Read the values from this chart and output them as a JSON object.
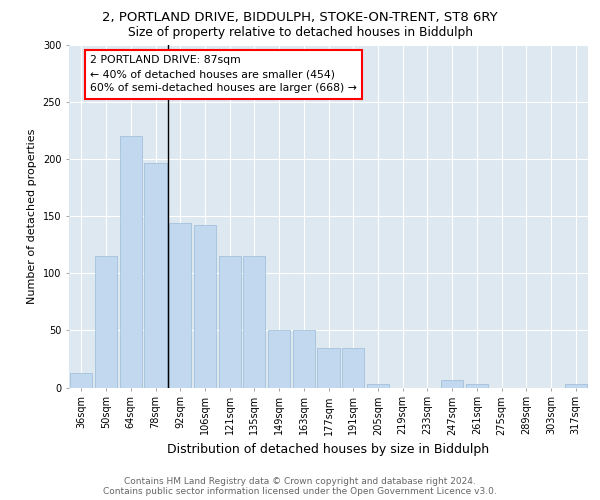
{
  "title_line1": "2, PORTLAND DRIVE, BIDDULPH, STOKE-ON-TRENT, ST8 6RY",
  "title_line2": "Size of property relative to detached houses in Biddulph",
  "xlabel": "Distribution of detached houses by size in Biddulph",
  "ylabel": "Number of detached properties",
  "categories": [
    "36sqm",
    "50sqm",
    "64sqm",
    "78sqm",
    "92sqm",
    "106sqm",
    "121sqm",
    "135sqm",
    "149sqm",
    "163sqm",
    "177sqm",
    "191sqm",
    "205sqm",
    "219sqm",
    "233sqm",
    "247sqm",
    "261sqm",
    "275sqm",
    "289sqm",
    "303sqm",
    "317sqm"
  ],
  "values": [
    13,
    115,
    220,
    197,
    144,
    142,
    115,
    115,
    50,
    50,
    35,
    35,
    3,
    0,
    0,
    7,
    3,
    0,
    0,
    0,
    3
  ],
  "bar_color": "#c2d8ee",
  "bar_edge_color": "#9bbcd8",
  "annotation_text": "2 PORTLAND DRIVE: 87sqm\n← 40% of detached houses are smaller (454)\n60% of semi-detached houses are larger (668) →",
  "ylim": [
    0,
    300
  ],
  "yticks": [
    0,
    50,
    100,
    150,
    200,
    250,
    300
  ],
  "bg_color": "#dde8f0",
  "footer_text": "Contains HM Land Registry data © Crown copyright and database right 2024.\nContains public sector information licensed under the Open Government Licence v3.0.",
  "title_fontsize": 9.5,
  "subtitle_fontsize": 8.8,
  "xlabel_fontsize": 9.0,
  "ylabel_fontsize": 8.0,
  "tick_fontsize": 7.0,
  "annotation_fontsize": 7.8,
  "footer_fontsize": 6.5
}
